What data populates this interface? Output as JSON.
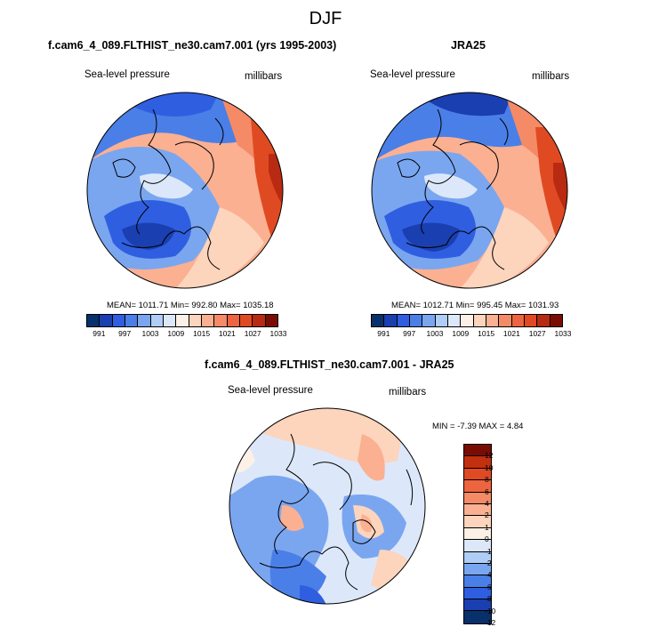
{
  "header": {
    "title": "DJF"
  },
  "panels": {
    "left": {
      "title": "f.cam6_4_089.FLTHIST_ne30.cam7.001 (yrs 1995-2003)",
      "variable": "Sea-level pressure",
      "units": "millibars",
      "stats": "MEAN= 1011.71  Min= 992.80  Max= 1035.18"
    },
    "right": {
      "title": "JRA25",
      "variable": "Sea-level pressure",
      "units": "millibars",
      "stats": "MEAN= 1012.71  Min= 995.45  Max= 1031.93"
    },
    "diff": {
      "title": "f.cam6_4_089.FLTHIST_ne30.cam7.001 - JRA25",
      "variable": "Sea-level pressure",
      "units": "millibars",
      "stats": "MIN = -7.39 MAX =  4.84"
    }
  },
  "colorbar_abs": {
    "colors": [
      "#08306b",
      "#1a3fb0",
      "#2f5fe0",
      "#4a7fe8",
      "#7aa6f0",
      "#b0cdf5",
      "#dce8fa",
      "#fdf0e6",
      "#fdd4bc",
      "#fbb092",
      "#f58a66",
      "#ec6440",
      "#e04a22",
      "#b82a12",
      "#7a0c04"
    ],
    "ticks": [
      "991",
      "997",
      "1003",
      "1009",
      "1015",
      "1021",
      "1027",
      "1033"
    ]
  },
  "colorbar_diff": {
    "colors": [
      "#7a0c04",
      "#c2300f",
      "#e04a22",
      "#ec6440",
      "#f58a66",
      "#fbb092",
      "#fdd4bc",
      "#fdf0e6",
      "#dce8fa",
      "#b0cdf5",
      "#7aa6f0",
      "#4a7fe8",
      "#2f5fe0",
      "#1a3fb0",
      "#08306b"
    ],
    "ticks": [
      "12",
      "10",
      "8",
      "6",
      "4",
      "2",
      "1",
      "0",
      "-1",
      "-2",
      "-4",
      "-6",
      "-8",
      "-10",
      "-12"
    ]
  }
}
